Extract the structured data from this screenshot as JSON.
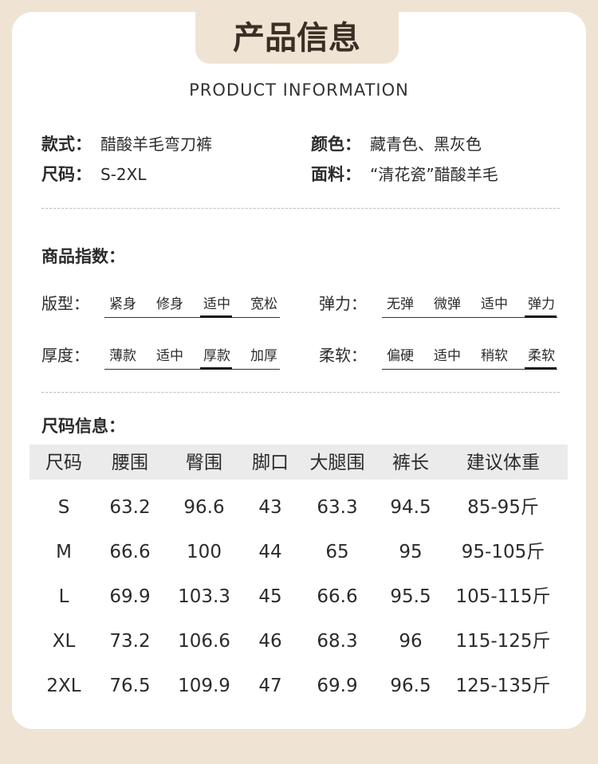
{
  "header": {
    "title": "产品信息",
    "subtitle": "PRODUCT INFORMATION"
  },
  "info": [
    {
      "label": "款式：",
      "value": "醋酸羊毛弯刀裤"
    },
    {
      "label": "颜色：",
      "value": "藏青色、黑灰色"
    },
    {
      "label": "尺码：",
      "value": "S-2XL"
    },
    {
      "label": "面料：",
      "value": "“清花瓷”醋酸羊毛"
    }
  ],
  "indices": {
    "title": "商品指数：",
    "items": [
      {
        "label": "版型：",
        "options": [
          "紧身",
          "修身",
          "适中",
          "宽松"
        ],
        "selected": 2
      },
      {
        "label": "弹力：",
        "options": [
          "无弹",
          "微弹",
          "适中",
          "弹力"
        ],
        "selected": 3
      },
      {
        "label": "厚度：",
        "options": [
          "薄款",
          "适中",
          "厚款",
          "加厚"
        ],
        "selected": 2
      },
      {
        "label": "柔软：",
        "options": [
          "偏硬",
          "适中",
          "稍软",
          "柔软"
        ],
        "selected": 3
      }
    ]
  },
  "sizes": {
    "title": "尺码信息：",
    "table": {
      "header": [
        "尺码",
        "腰围",
        "臀围",
        "脚口",
        "大腿围",
        "裤长",
        "建议体重"
      ],
      "rows": [
        [
          "S",
          "63.2",
          "96.6",
          "43",
          "63.3",
          "94.5",
          "85-95斤"
        ],
        [
          "M",
          "66.6",
          "100",
          "44",
          "65",
          "95",
          "95-105斤"
        ],
        [
          "L",
          "69.9",
          "103.3",
          "45",
          "66.6",
          "95.5",
          "105-115斤"
        ],
        [
          "XL",
          "73.2",
          "106.6",
          "46",
          "68.3",
          "96",
          "115-125斤"
        ],
        [
          "2XL",
          "76.5",
          "109.9",
          "47",
          "69.9",
          "96.5",
          "125-135斤"
        ]
      ]
    }
  }
}
